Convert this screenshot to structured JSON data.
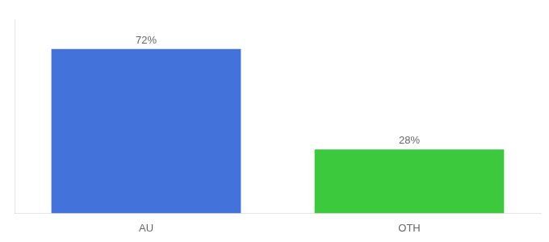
{
  "chart_data": {
    "type": "bar",
    "categories": [
      "AU",
      "OTH"
    ],
    "values": [
      72,
      28
    ],
    "value_labels": [
      "72%",
      "28%"
    ],
    "colors": [
      "#4472db",
      "#3dc93d"
    ],
    "ylim": [
      0,
      85
    ],
    "data_labels": true,
    "tick_labels": "x",
    "grid": false
  }
}
